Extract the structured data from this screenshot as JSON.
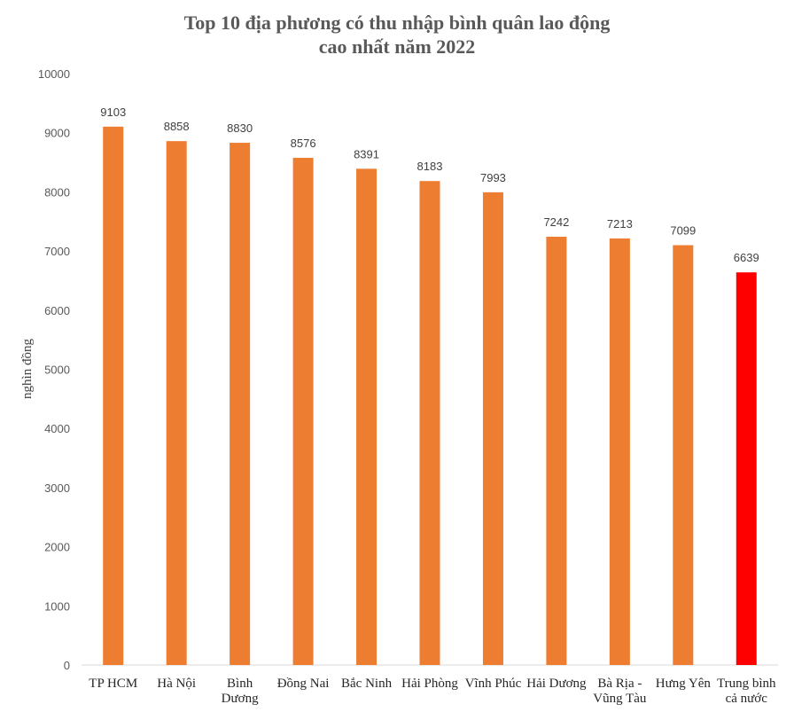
{
  "chart_data": {
    "type": "bar",
    "title": [
      "Top 10 địa phương có thu nhập bình quân lao động",
      "cao nhất năm 2022"
    ],
    "ylabel": "nghìn đồng",
    "xlabel": "",
    "ylim": [
      0,
      10000
    ],
    "yticks": [
      0,
      1000,
      2000,
      3000,
      4000,
      5000,
      6000,
      7000,
      8000,
      9000,
      10000
    ],
    "grid": false,
    "legend": "none",
    "categories": [
      [
        "TP HCM"
      ],
      [
        "Hà Nội"
      ],
      [
        "Bình",
        "Dương"
      ],
      [
        "Đồng Nai"
      ],
      [
        "Bắc Ninh"
      ],
      [
        "Hải Phòng"
      ],
      [
        "Vĩnh Phúc"
      ],
      [
        "Hải Dương"
      ],
      [
        "Bà Rịa -",
        "Vũng Tàu"
      ],
      [
        "Hưng Yên"
      ],
      [
        "Trung bình",
        "cả nước"
      ]
    ],
    "values": [
      9103,
      8858,
      8830,
      8576,
      8391,
      8183,
      7993,
      7242,
      7213,
      7099,
      6639
    ],
    "colors": [
      "#ED7D31",
      "#ED7D31",
      "#ED7D31",
      "#ED7D31",
      "#ED7D31",
      "#ED7D31",
      "#ED7D31",
      "#ED7D31",
      "#ED7D31",
      "#ED7D31",
      "#FF0000"
    ],
    "axis_color": "#D9D9D9"
  }
}
